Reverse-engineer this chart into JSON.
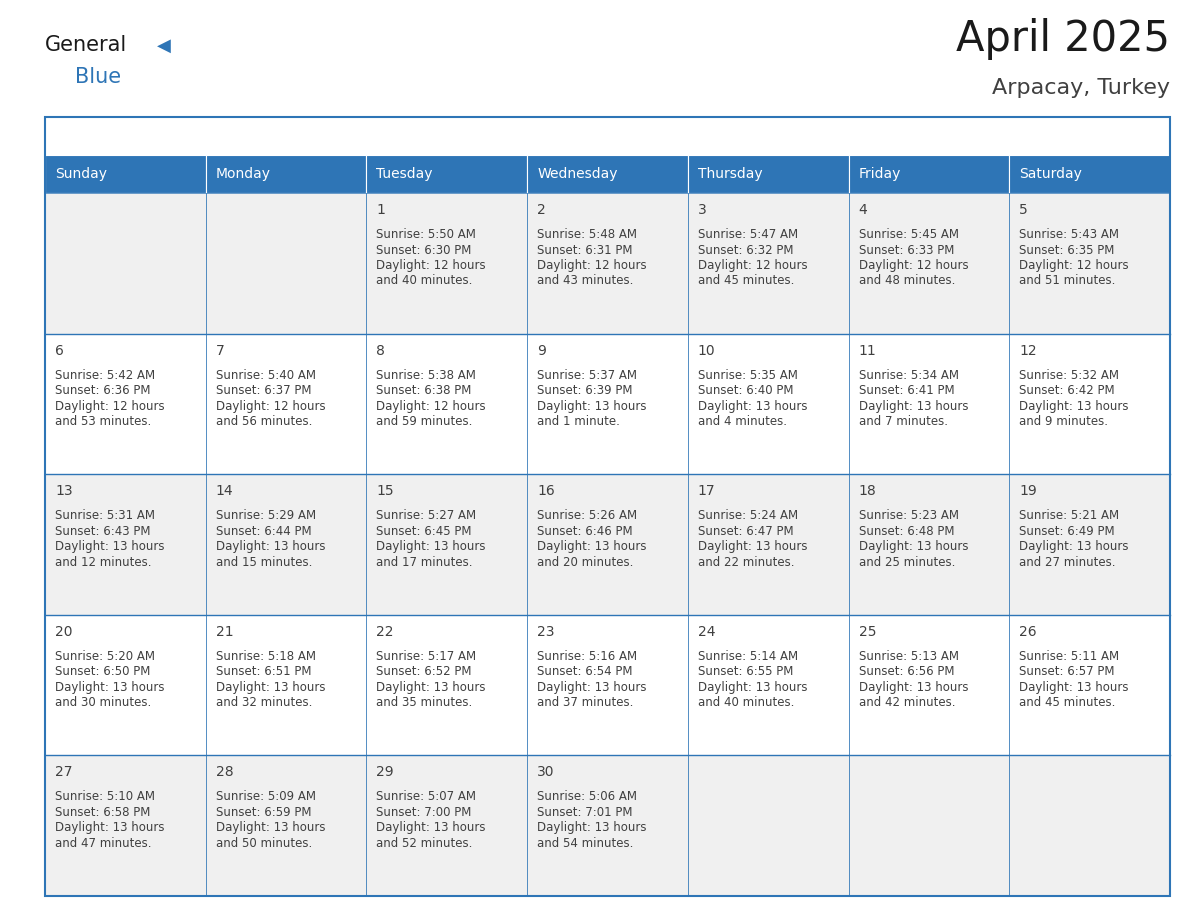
{
  "title": "April 2025",
  "subtitle": "Arpacay, Turkey",
  "header_color": "#2E75B6",
  "header_text_color": "#FFFFFF",
  "cell_bg_white": "#FFFFFF",
  "cell_bg_gray": "#F0F0F0",
  "border_color": "#2E75B6",
  "text_color": "#404040",
  "days_of_week": [
    "Sunday",
    "Monday",
    "Tuesday",
    "Wednesday",
    "Thursday",
    "Friday",
    "Saturday"
  ],
  "weeks": [
    [
      {
        "day": "",
        "sunrise": "",
        "sunset": "",
        "daylight": ""
      },
      {
        "day": "",
        "sunrise": "",
        "sunset": "",
        "daylight": ""
      },
      {
        "day": "1",
        "sunrise": "5:50 AM",
        "sunset": "6:30 PM",
        "daylight": "12 hours and 40 minutes."
      },
      {
        "day": "2",
        "sunrise": "5:48 AM",
        "sunset": "6:31 PM",
        "daylight": "12 hours and 43 minutes."
      },
      {
        "day": "3",
        "sunrise": "5:47 AM",
        "sunset": "6:32 PM",
        "daylight": "12 hours and 45 minutes."
      },
      {
        "day": "4",
        "sunrise": "5:45 AM",
        "sunset": "6:33 PM",
        "daylight": "12 hours and 48 minutes."
      },
      {
        "day": "5",
        "sunrise": "5:43 AM",
        "sunset": "6:35 PM",
        "daylight": "12 hours and 51 minutes."
      }
    ],
    [
      {
        "day": "6",
        "sunrise": "5:42 AM",
        "sunset": "6:36 PM",
        "daylight": "12 hours and 53 minutes."
      },
      {
        "day": "7",
        "sunrise": "5:40 AM",
        "sunset": "6:37 PM",
        "daylight": "12 hours and 56 minutes."
      },
      {
        "day": "8",
        "sunrise": "5:38 AM",
        "sunset": "6:38 PM",
        "daylight": "12 hours and 59 minutes."
      },
      {
        "day": "9",
        "sunrise": "5:37 AM",
        "sunset": "6:39 PM",
        "daylight": "13 hours and 1 minute."
      },
      {
        "day": "10",
        "sunrise": "5:35 AM",
        "sunset": "6:40 PM",
        "daylight": "13 hours and 4 minutes."
      },
      {
        "day": "11",
        "sunrise": "5:34 AM",
        "sunset": "6:41 PM",
        "daylight": "13 hours and 7 minutes."
      },
      {
        "day": "12",
        "sunrise": "5:32 AM",
        "sunset": "6:42 PM",
        "daylight": "13 hours and 9 minutes."
      }
    ],
    [
      {
        "day": "13",
        "sunrise": "5:31 AM",
        "sunset": "6:43 PM",
        "daylight": "13 hours and 12 minutes."
      },
      {
        "day": "14",
        "sunrise": "5:29 AM",
        "sunset": "6:44 PM",
        "daylight": "13 hours and 15 minutes."
      },
      {
        "day": "15",
        "sunrise": "5:27 AM",
        "sunset": "6:45 PM",
        "daylight": "13 hours and 17 minutes."
      },
      {
        "day": "16",
        "sunrise": "5:26 AM",
        "sunset": "6:46 PM",
        "daylight": "13 hours and 20 minutes."
      },
      {
        "day": "17",
        "sunrise": "5:24 AM",
        "sunset": "6:47 PM",
        "daylight": "13 hours and 22 minutes."
      },
      {
        "day": "18",
        "sunrise": "5:23 AM",
        "sunset": "6:48 PM",
        "daylight": "13 hours and 25 minutes."
      },
      {
        "day": "19",
        "sunrise": "5:21 AM",
        "sunset": "6:49 PM",
        "daylight": "13 hours and 27 minutes."
      }
    ],
    [
      {
        "day": "20",
        "sunrise": "5:20 AM",
        "sunset": "6:50 PM",
        "daylight": "13 hours and 30 minutes."
      },
      {
        "day": "21",
        "sunrise": "5:18 AM",
        "sunset": "6:51 PM",
        "daylight": "13 hours and 32 minutes."
      },
      {
        "day": "22",
        "sunrise": "5:17 AM",
        "sunset": "6:52 PM",
        "daylight": "13 hours and 35 minutes."
      },
      {
        "day": "23",
        "sunrise": "5:16 AM",
        "sunset": "6:54 PM",
        "daylight": "13 hours and 37 minutes."
      },
      {
        "day": "24",
        "sunrise": "5:14 AM",
        "sunset": "6:55 PM",
        "daylight": "13 hours and 40 minutes."
      },
      {
        "day": "25",
        "sunrise": "5:13 AM",
        "sunset": "6:56 PM",
        "daylight": "13 hours and 42 minutes."
      },
      {
        "day": "26",
        "sunrise": "5:11 AM",
        "sunset": "6:57 PM",
        "daylight": "13 hours and 45 minutes."
      }
    ],
    [
      {
        "day": "27",
        "sunrise": "5:10 AM",
        "sunset": "6:58 PM",
        "daylight": "13 hours and 47 minutes."
      },
      {
        "day": "28",
        "sunrise": "5:09 AM",
        "sunset": "6:59 PM",
        "daylight": "13 hours and 50 minutes."
      },
      {
        "day": "29",
        "sunrise": "5:07 AM",
        "sunset": "7:00 PM",
        "daylight": "13 hours and 52 minutes."
      },
      {
        "day": "30",
        "sunrise": "5:06 AM",
        "sunset": "7:01 PM",
        "daylight": "13 hours and 54 minutes."
      },
      {
        "day": "",
        "sunrise": "",
        "sunset": "",
        "daylight": ""
      },
      {
        "day": "",
        "sunrise": "",
        "sunset": "",
        "daylight": ""
      },
      {
        "day": "",
        "sunrise": "",
        "sunset": "",
        "daylight": ""
      }
    ]
  ]
}
